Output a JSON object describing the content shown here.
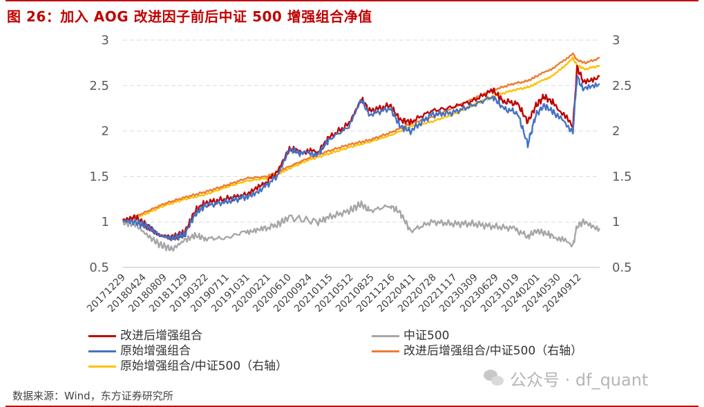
{
  "title": "图 26：加入 AOG 改进因子前后中证 500 增强组合净值",
  "source": "数据来源：Wind，东方证券研究所",
  "watermark": "公众号 · df_quant",
  "chart_data": {
    "type": "line",
    "x_ticks": [
      "20171229",
      "20180424",
      "20180809",
      "20181129",
      "20190322",
      "20190711",
      "20191031",
      "20200221",
      "20200610",
      "20200924",
      "20210115",
      "20210512",
      "20210825",
      "20211216",
      "20220411",
      "20220728",
      "20221117",
      "20230309",
      "20230629",
      "20231019",
      "20240201",
      "20240530",
      "20240912"
    ],
    "y_left": {
      "min": 0.5,
      "max": 3,
      "ticks": [
        "0.5",
        "1",
        "1.5",
        "2",
        "2.5",
        "3"
      ]
    },
    "y_right": {
      "min": 0.5,
      "max": 3,
      "ticks": [
        "0.5",
        "1",
        "1.5",
        "2",
        "2.5",
        "3"
      ]
    },
    "grid": "horizontal dashed",
    "legend": "bottom",
    "series": [
      {
        "name": "改进后增强组合",
        "color": "#c00000",
        "axis": "left",
        "points": [
          [
            0,
            1.02
          ],
          [
            0.6,
            1.05
          ],
          [
            1.2,
            0.95
          ],
          [
            1.8,
            0.85
          ],
          [
            2.4,
            0.83
          ],
          [
            3.0,
            0.88
          ],
          [
            3.5,
            1.12
          ],
          [
            4.0,
            1.21
          ],
          [
            5.0,
            1.25
          ],
          [
            6.0,
            1.3
          ],
          [
            6.8,
            1.4
          ],
          [
            7.5,
            1.55
          ],
          [
            8.1,
            1.8
          ],
          [
            8.6,
            1.78
          ],
          [
            9.5,
            1.77
          ],
          [
            10.0,
            1.92
          ],
          [
            11.0,
            2.08
          ],
          [
            11.6,
            2.35
          ],
          [
            12.0,
            2.22
          ],
          [
            13.0,
            2.28
          ],
          [
            13.5,
            2.12
          ],
          [
            14.0,
            2.1
          ],
          [
            15.0,
            2.22
          ],
          [
            16.0,
            2.26
          ],
          [
            17.0,
            2.33
          ],
          [
            18.0,
            2.45
          ],
          [
            18.5,
            2.33
          ],
          [
            19.2,
            2.3
          ],
          [
            19.7,
            2.1
          ],
          [
            20.1,
            2.28
          ],
          [
            20.5,
            2.38
          ],
          [
            21.0,
            2.3
          ],
          [
            21.9,
            2.05
          ],
          [
            22.1,
            2.7
          ],
          [
            22.4,
            2.55
          ],
          [
            23.2,
            2.6
          ]
        ]
      },
      {
        "name": "中证500",
        "color": "#a6a6a6",
        "axis": "left",
        "points": [
          [
            0,
            1.0
          ],
          [
            0.6,
            0.97
          ],
          [
            1.2,
            0.85
          ],
          [
            1.8,
            0.75
          ],
          [
            2.4,
            0.7
          ],
          [
            3.0,
            0.8
          ],
          [
            3.5,
            0.85
          ],
          [
            4.0,
            0.82
          ],
          [
            5.0,
            0.82
          ],
          [
            6.0,
            0.9
          ],
          [
            6.8,
            0.92
          ],
          [
            7.5,
            0.97
          ],
          [
            8.1,
            1.05
          ],
          [
            9.5,
            1.0
          ],
          [
            10.0,
            1.05
          ],
          [
            11.0,
            1.12
          ],
          [
            11.6,
            1.2
          ],
          [
            12.0,
            1.12
          ],
          [
            13.0,
            1.18
          ],
          [
            13.5,
            1.1
          ],
          [
            14.0,
            0.9
          ],
          [
            15.0,
            1.0
          ],
          [
            16.0,
            0.98
          ],
          [
            17.0,
            0.98
          ],
          [
            18.0,
            0.95
          ],
          [
            19.0,
            0.93
          ],
          [
            19.7,
            0.84
          ],
          [
            20.1,
            0.9
          ],
          [
            20.5,
            0.88
          ],
          [
            21.0,
            0.84
          ],
          [
            21.9,
            0.75
          ],
          [
            22.1,
            0.95
          ],
          [
            22.4,
            1.0
          ],
          [
            23.2,
            0.93
          ]
        ]
      },
      {
        "name": "原始增强组合",
        "color": "#4472c4",
        "axis": "left",
        "points": [
          [
            0,
            1.01
          ],
          [
            0.6,
            1.0
          ],
          [
            1.2,
            0.95
          ],
          [
            1.8,
            0.85
          ],
          [
            2.4,
            0.82
          ],
          [
            3.0,
            0.86
          ],
          [
            3.5,
            1.08
          ],
          [
            4.0,
            1.18
          ],
          [
            5.0,
            1.22
          ],
          [
            6.0,
            1.28
          ],
          [
            6.8,
            1.37
          ],
          [
            7.5,
            1.5
          ],
          [
            8.1,
            1.8
          ],
          [
            8.6,
            1.76
          ],
          [
            9.5,
            1.75
          ],
          [
            10.0,
            1.9
          ],
          [
            11.0,
            2.05
          ],
          [
            11.6,
            2.35
          ],
          [
            12.0,
            2.18
          ],
          [
            13.0,
            2.25
          ],
          [
            13.5,
            2.05
          ],
          [
            14.0,
            2.0
          ],
          [
            15.0,
            2.18
          ],
          [
            16.0,
            2.2
          ],
          [
            17.0,
            2.28
          ],
          [
            18.0,
            2.38
          ],
          [
            18.5,
            2.25
          ],
          [
            19.2,
            2.2
          ],
          [
            19.7,
            1.85
          ],
          [
            20.1,
            2.18
          ],
          [
            20.5,
            2.28
          ],
          [
            21.0,
            2.2
          ],
          [
            21.9,
            2.0
          ],
          [
            22.1,
            2.6
          ],
          [
            22.4,
            2.45
          ],
          [
            23.2,
            2.52
          ]
        ]
      },
      {
        "name": "改进后增强组合/中证500（右轴）",
        "color": "#ed7d31",
        "axis": "right",
        "points": [
          [
            0,
            1.0
          ],
          [
            1.0,
            1.1
          ],
          [
            2.0,
            1.2
          ],
          [
            3.0,
            1.27
          ],
          [
            4.0,
            1.33
          ],
          [
            5.0,
            1.4
          ],
          [
            6.0,
            1.48
          ],
          [
            7.0,
            1.5
          ],
          [
            7.5,
            1.55
          ],
          [
            8.0,
            1.6
          ],
          [
            9.0,
            1.7
          ],
          [
            10.0,
            1.78
          ],
          [
            11.0,
            1.85
          ],
          [
            12.0,
            1.9
          ],
          [
            13.0,
            1.98
          ],
          [
            14.0,
            2.08
          ],
          [
            15.0,
            2.15
          ],
          [
            16.0,
            2.25
          ],
          [
            17.0,
            2.35
          ],
          [
            18.0,
            2.45
          ],
          [
            19.0,
            2.52
          ],
          [
            19.7,
            2.55
          ],
          [
            20.1,
            2.6
          ],
          [
            21.0,
            2.7
          ],
          [
            21.9,
            2.85
          ],
          [
            22.1,
            2.78
          ],
          [
            22.5,
            2.75
          ],
          [
            23.2,
            2.8
          ]
        ]
      },
      {
        "name": "原始增强组合/中证500（右轴）",
        "color": "#ffc000",
        "axis": "right",
        "points": [
          [
            0,
            1.0
          ],
          [
            1.0,
            1.08
          ],
          [
            2.0,
            1.18
          ],
          [
            3.0,
            1.25
          ],
          [
            4.0,
            1.3
          ],
          [
            5.0,
            1.38
          ],
          [
            6.0,
            1.45
          ],
          [
            7.0,
            1.48
          ],
          [
            7.5,
            1.52
          ],
          [
            8.0,
            1.58
          ],
          [
            9.0,
            1.68
          ],
          [
            10.0,
            1.75
          ],
          [
            11.0,
            1.82
          ],
          [
            12.0,
            1.88
          ],
          [
            13.0,
            1.95
          ],
          [
            14.0,
            2.05
          ],
          [
            15.0,
            2.1
          ],
          [
            16.0,
            2.18
          ],
          [
            17.0,
            2.28
          ],
          [
            18.0,
            2.38
          ],
          [
            19.0,
            2.45
          ],
          [
            19.7,
            2.48
          ],
          [
            20.1,
            2.52
          ],
          [
            21.0,
            2.62
          ],
          [
            21.9,
            2.8
          ],
          [
            22.1,
            2.72
          ],
          [
            22.5,
            2.68
          ],
          [
            23.2,
            2.72
          ]
        ]
      }
    ]
  }
}
